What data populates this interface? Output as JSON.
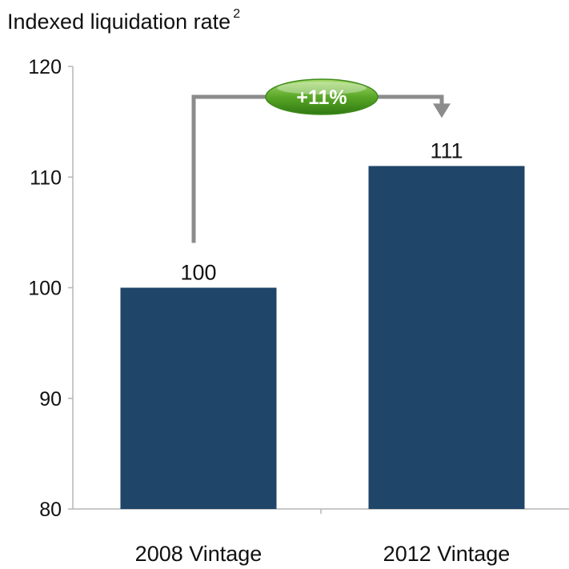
{
  "chart_data": {
    "type": "bar",
    "ylabel": "Indexed liquidation rate",
    "ylabel_superscript": "2",
    "categories": [
      "2008 Vintage",
      "2012 Vintage"
    ],
    "values": [
      100,
      111
    ],
    "data_labels": [
      "100",
      "111"
    ],
    "ylim": [
      80,
      120
    ],
    "yticks": [
      80,
      90,
      100,
      110,
      120
    ],
    "grid": false,
    "legend": "none",
    "bar_color": "#1f4569",
    "annotation": {
      "text": "+11%",
      "from": "2008 Vintage",
      "to": "2012 Vintage",
      "color": "#5aa728",
      "arrow_color": "#8c8c8c"
    }
  }
}
